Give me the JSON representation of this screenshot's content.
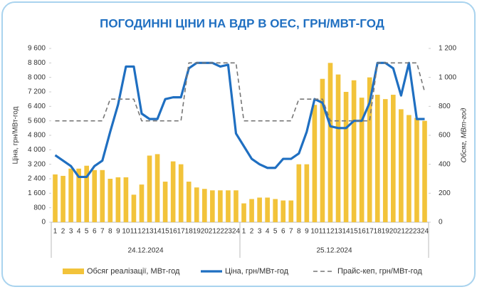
{
  "chart_data": {
    "type": "combo",
    "title": "ПОГОДИННІ ЦІНИ НА ВДР В ОЕС, ГРН/МВТ-ГОД",
    "y_label": "Ціна, грн/МВт-год",
    "y2_label": "Обсяг, МВт-год",
    "categories": [
      "1",
      "2",
      "3",
      "4",
      "5",
      "6",
      "7",
      "8",
      "9",
      "10",
      "11",
      "12",
      "13",
      "14",
      "15",
      "16",
      "17",
      "18",
      "19",
      "20",
      "21",
      "22",
      "23",
      "24",
      "1",
      "2",
      "3",
      "4",
      "5",
      "6",
      "7",
      "8",
      "9",
      "10",
      "11",
      "12",
      "13",
      "14",
      "15",
      "16",
      "17",
      "18",
      "19",
      "20",
      "21",
      "22",
      "23",
      "24"
    ],
    "category_groups": [
      "24.12.2024",
      "25.12.2024"
    ],
    "ylim": [
      0,
      9600
    ],
    "yticks": [
      0,
      800,
      {
        "value": 1600,
        "label": "1 600"
      },
      {
        "value": 2400,
        "label": "2 400"
      },
      {
        "value": 3200,
        "label": "3 200"
      },
      {
        "value": 4000,
        "label": "4 000"
      },
      {
        "value": 4800,
        "label": "4 800"
      },
      {
        "value": 5600,
        "label": "5 600"
      },
      {
        "value": 6400,
        "label": "6 400"
      },
      {
        "value": 7200,
        "label": "7 200"
      },
      {
        "value": 8000,
        "label": "8 000"
      },
      {
        "value": 8800,
        "label": "8 800"
      },
      {
        "value": 9600,
        "label": "9 600"
      }
    ],
    "y2lim": [
      0,
      1200
    ],
    "y2ticks": [
      0,
      200,
      400,
      600,
      800,
      {
        "value": 1000,
        "label": "1 000"
      },
      {
        "value": 1200,
        "label": "1 200"
      }
    ],
    "legend": "bottom",
    "series": [
      {
        "name": "Обсяг реалізації, МВт-год",
        "type": "bar",
        "axis": "y2",
        "color": "#f2c33a",
        "values": [
          330,
          320,
          370,
          370,
          390,
          360,
          360,
          300,
          310,
          310,
          190,
          260,
          460,
          470,
          280,
          420,
          400,
          280,
          240,
          230,
          220,
          220,
          220,
          220,
          130,
          160,
          170,
          170,
          160,
          150,
          150,
          400,
          400,
          810,
          990,
          1100,
          1020,
          900,
          980,
          860,
          1000,
          880,
          850,
          880,
          780,
          740,
          720,
          700
        ]
      },
      {
        "name": "Ціна, грн/МВт-год",
        "type": "line",
        "color": "#1f6fc1",
        "values": [
          3700,
          3400,
          3100,
          2500,
          2500,
          3100,
          3400,
          5000,
          6500,
          8600,
          8600,
          6000,
          5700,
          5700,
          6800,
          6900,
          6900,
          8500,
          8800,
          8800,
          8800,
          8600,
          8700,
          4900,
          4200,
          3500,
          3200,
          3000,
          3000,
          3500,
          3500,
          3800,
          5000,
          6800,
          6600,
          5300,
          5200,
          5200,
          5600,
          5600,
          6600,
          8800,
          8800,
          8500,
          7000,
          8800,
          5700,
          5700
        ]
      },
      {
        "name": "Прайс-кеп, грн/МВт-год",
        "type": "dashed",
        "color": "#777777",
        "values": [
          5600,
          5600,
          5600,
          5600,
          5600,
          5600,
          5600,
          6800,
          6800,
          6800,
          6800,
          5600,
          5600,
          5600,
          5600,
          5600,
          5600,
          8800,
          8800,
          8800,
          8800,
          8800,
          8800,
          8800,
          5600,
          5600,
          5600,
          5600,
          5600,
          5600,
          5600,
          6800,
          6800,
          6800,
          6800,
          5600,
          5600,
          5600,
          5600,
          5600,
          5600,
          8800,
          8800,
          8800,
          8800,
          8800,
          8800,
          7200
        ]
      }
    ]
  }
}
